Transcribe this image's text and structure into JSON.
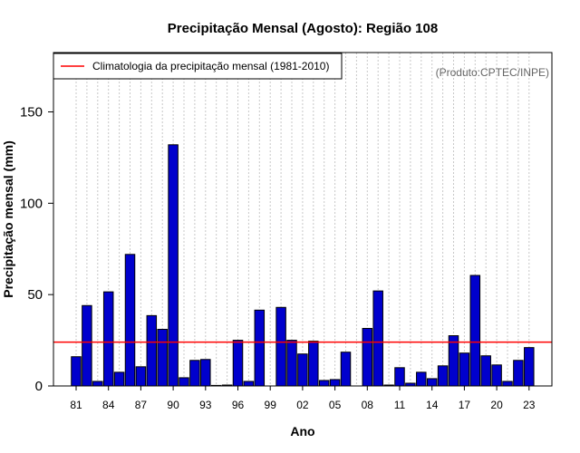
{
  "chart_data": {
    "type": "bar",
    "title": "Precipitação Mensal (Agosto): Região 108",
    "xlabel": "Ano",
    "ylabel": "Precipitação mensal (mm)",
    "ylim": [
      0,
      180
    ],
    "yticks": [
      0,
      50,
      100,
      150
    ],
    "credit": "(Produto:CPTEC/INPE)",
    "climatology": {
      "label": "Climatologia da precipitação mensal (1981-2010)",
      "value": 24,
      "color": "#ff0000"
    },
    "bar_color": "#0000cd",
    "years": [
      "81",
      "82",
      "83",
      "84",
      "85",
      "86",
      "87",
      "88",
      "89",
      "90",
      "91",
      "92",
      "93",
      "94",
      "95",
      "96",
      "97",
      "98",
      "99",
      "00",
      "01",
      "02",
      "03",
      "04",
      "05",
      "06",
      "07",
      "08",
      "09",
      "10",
      "11",
      "12",
      "13",
      "14",
      "15",
      "16",
      "17",
      "18",
      "19",
      "20",
      "21",
      "22",
      "23"
    ],
    "tick_labels": [
      "81",
      "84",
      "87",
      "90",
      "93",
      "96",
      "99",
      "02",
      "05",
      "08",
      "11",
      "14",
      "17",
      "20",
      "23"
    ],
    "values": [
      16,
      44,
      2.5,
      51.5,
      7.5,
      72,
      10.5,
      38.5,
      31,
      132,
      4.5,
      14,
      14.5,
      0.3,
      0.5,
      25,
      2.5,
      41.5,
      0,
      43,
      25,
      17.5,
      24.5,
      3,
      3.5,
      18.5,
      0,
      31.5,
      52,
      0.5,
      10,
      1.5,
      7.5,
      4,
      11,
      27.5,
      18,
      60.5,
      16.5,
      11.5,
      2.5,
      14,
      21
    ]
  }
}
